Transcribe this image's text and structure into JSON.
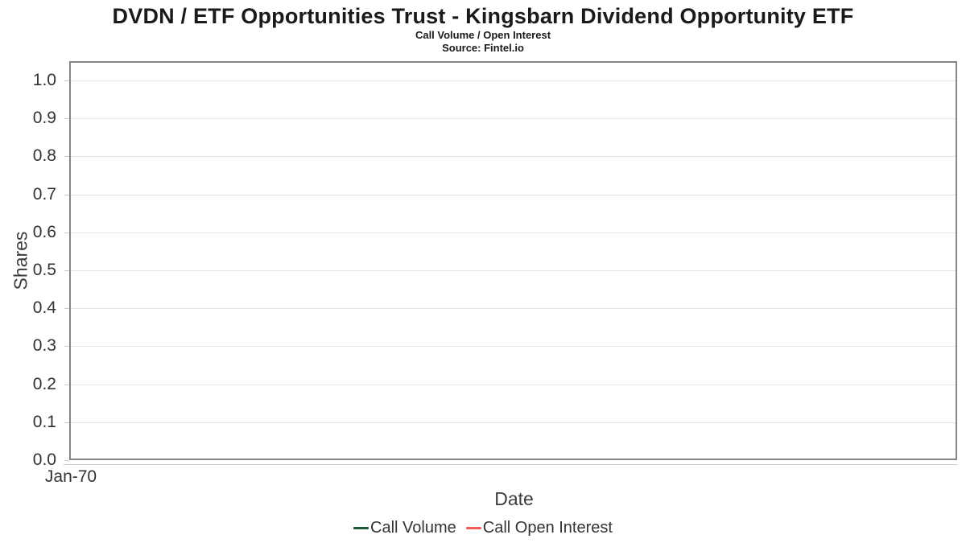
{
  "header": {
    "title": "DVDN / ETF Opportunities Trust - Kingsbarn Dividend Opportunity ETF",
    "subtitle": "Call Volume / Open Interest",
    "source": "Source: Fintel.io"
  },
  "chart_data": {
    "type": "line",
    "title": "DVDN / ETF Opportunities Trust - Kingsbarn Dividend Opportunity ETF",
    "subtitle": "Call Volume / Open Interest",
    "source_note": "Source: Fintel.io",
    "xlabel": "Date",
    "ylabel": "Shares",
    "ylim": [
      0.0,
      1.0
    ],
    "yticks": [
      1.0,
      0.9,
      0.8,
      0.7,
      0.6,
      0.5,
      0.4,
      0.3,
      0.2,
      0.1,
      0.0
    ],
    "ytick_labels": [
      "1.0",
      "0.9",
      "0.8",
      "0.7",
      "0.6",
      "0.5",
      "0.4",
      "0.3",
      "0.2",
      "0.1",
      "0.0"
    ],
    "xticks": [
      "Jan-70"
    ],
    "grid": "horizontal",
    "legend_position": "bottom",
    "series": [
      {
        "name": "Call Volume",
        "color": "#1e5c39",
        "values": []
      },
      {
        "name": "Call Open Interest",
        "color": "#f45b5b",
        "values": []
      }
    ]
  },
  "colors": {
    "plot_border": "#868686",
    "gridline": "#e4e4e4",
    "tick": "#cccccc",
    "tick_text": "#333333",
    "axis_title_text": "#3c3c3c"
  }
}
